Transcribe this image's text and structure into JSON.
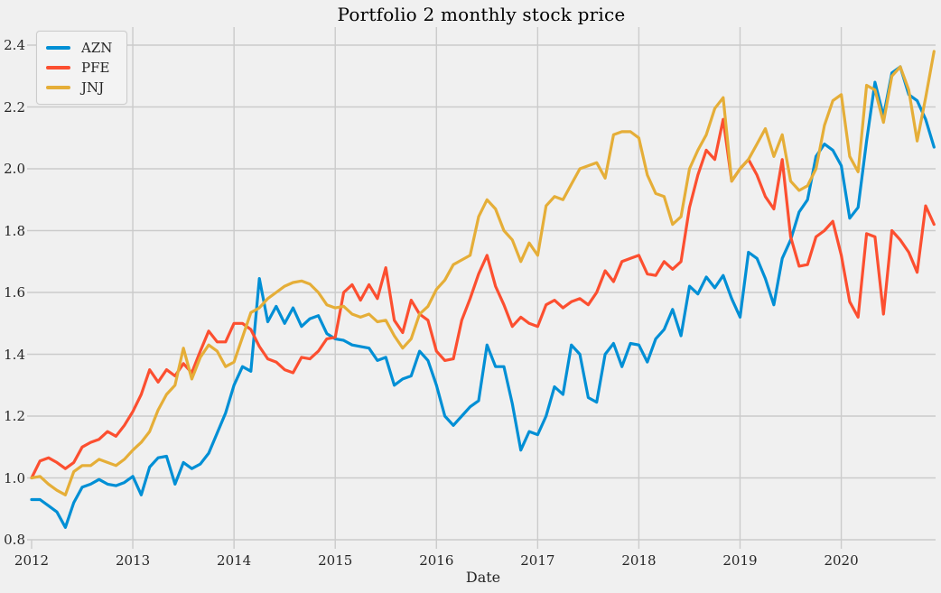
{
  "figure": {
    "title": "Portfolio 2 monthly stock price",
    "xlabel": "Date",
    "background_color": "#f0f0f0",
    "grid_color": "#cbcbcb",
    "text_color": "#262626"
  },
  "legend": {
    "position": "upper left",
    "items": [
      {
        "label": "AZN",
        "color": "#008fd5"
      },
      {
        "label": "PFE",
        "color": "#fc4f30"
      },
      {
        "label": "JNJ",
        "color": "#e5ae38"
      }
    ]
  },
  "chart_data": {
    "type": "line",
    "title": "Portfolio 2 monthly stock price",
    "xlabel": "Date",
    "ylabel": "",
    "x_unit": "month",
    "x_start": "2012-01",
    "x_end": "2020-12",
    "n_points": 108,
    "xticks": [
      "2012",
      "2013",
      "2014",
      "2015",
      "2016",
      "2017",
      "2018",
      "2019",
      "2020"
    ],
    "yticks": [
      0.8,
      1.0,
      1.2,
      1.4,
      1.6,
      1.8,
      2.0,
      2.2,
      2.4
    ],
    "ylim": [
      0.76,
      2.46
    ],
    "grid": true,
    "line_width": 3.2,
    "legend_position": "upper left",
    "series": [
      {
        "name": "AZN",
        "color": "#008fd5",
        "values": [
          0.93,
          0.93,
          0.91,
          0.89,
          0.84,
          0.92,
          0.97,
          0.98,
          0.995,
          0.98,
          0.975,
          0.985,
          1.005,
          0.945,
          1.035,
          1.065,
          1.07,
          0.98,
          1.05,
          1.03,
          1.045,
          1.08,
          1.145,
          1.21,
          1.3,
          1.36,
          1.345,
          1.645,
          1.505,
          1.555,
          1.5,
          1.55,
          1.49,
          1.515,
          1.525,
          1.467,
          1.45,
          1.445,
          1.43,
          1.425,
          1.42,
          1.38,
          1.39,
          1.3,
          1.32,
          1.33,
          1.41,
          1.38,
          1.3,
          1.2,
          1.17,
          1.2,
          1.23,
          1.25,
          1.43,
          1.36,
          1.36,
          1.24,
          1.09,
          1.15,
          1.14,
          1.2,
          1.295,
          1.27,
          1.43,
          1.4,
          1.26,
          1.245,
          1.4,
          1.435,
          1.36,
          1.435,
          1.43,
          1.375,
          1.45,
          1.48,
          1.545,
          1.46,
          1.62,
          1.595,
          1.65,
          1.615,
          1.655,
          1.58,
          1.52,
          1.73,
          1.71,
          1.645,
          1.56,
          1.71,
          1.77,
          1.86,
          1.9,
          2.04,
          2.08,
          2.06,
          2.01,
          1.84,
          1.875,
          2.09,
          2.28,
          2.17,
          2.31,
          2.33,
          2.24,
          2.22,
          2.16,
          2.07
        ]
      },
      {
        "name": "PFE",
        "color": "#fc4f30",
        "values": [
          1.0,
          1.055,
          1.065,
          1.05,
          1.03,
          1.05,
          1.1,
          1.115,
          1.125,
          1.15,
          1.135,
          1.17,
          1.215,
          1.27,
          1.35,
          1.31,
          1.35,
          1.33,
          1.37,
          1.34,
          1.41,
          1.475,
          1.44,
          1.44,
          1.5,
          1.5,
          1.48,
          1.425,
          1.385,
          1.375,
          1.35,
          1.34,
          1.39,
          1.385,
          1.41,
          1.45,
          1.455,
          1.6,
          1.625,
          1.575,
          1.625,
          1.58,
          1.68,
          1.51,
          1.47,
          1.575,
          1.53,
          1.51,
          1.41,
          1.38,
          1.385,
          1.51,
          1.58,
          1.66,
          1.72,
          1.62,
          1.56,
          1.49,
          1.52,
          1.5,
          1.49,
          1.56,
          1.575,
          1.55,
          1.57,
          1.58,
          1.56,
          1.6,
          1.67,
          1.635,
          1.7,
          1.71,
          1.72,
          1.66,
          1.655,
          1.7,
          1.675,
          1.7,
          1.875,
          1.98,
          2.06,
          2.03,
          2.16,
          1.96,
          2.0,
          2.03,
          1.98,
          1.91,
          1.87,
          2.03,
          1.78,
          1.685,
          1.69,
          1.78,
          1.8,
          1.83,
          1.72,
          1.57,
          1.52,
          1.79,
          1.78,
          1.53,
          1.8,
          1.77,
          1.73,
          1.665,
          1.88,
          1.82
        ]
      },
      {
        "name": "JNJ",
        "color": "#e5ae38",
        "values": [
          1.0,
          1.005,
          0.98,
          0.96,
          0.945,
          1.02,
          1.04,
          1.04,
          1.06,
          1.05,
          1.04,
          1.06,
          1.09,
          1.115,
          1.15,
          1.22,
          1.27,
          1.3,
          1.42,
          1.32,
          1.39,
          1.43,
          1.41,
          1.36,
          1.375,
          1.455,
          1.535,
          1.55,
          1.58,
          1.6,
          1.62,
          1.632,
          1.637,
          1.627,
          1.6,
          1.56,
          1.55,
          1.555,
          1.53,
          1.52,
          1.53,
          1.505,
          1.51,
          1.46,
          1.42,
          1.45,
          1.53,
          1.555,
          1.61,
          1.64,
          1.69,
          1.705,
          1.72,
          1.845,
          1.9,
          1.87,
          1.8,
          1.77,
          1.7,
          1.76,
          1.72,
          1.88,
          1.91,
          1.9,
          1.95,
          2.0,
          2.01,
          2.02,
          1.97,
          2.11,
          2.12,
          2.12,
          2.1,
          1.98,
          1.92,
          1.91,
          1.82,
          1.845,
          2.0,
          2.06,
          2.11,
          2.195,
          2.23,
          1.96,
          2.0,
          2.03,
          2.08,
          2.13,
          2.04,
          2.11,
          1.96,
          1.93,
          1.945,
          2.0,
          2.14,
          2.22,
          2.24,
          2.04,
          1.99,
          2.27,
          2.255,
          2.15,
          2.3,
          2.33,
          2.255,
          2.09,
          2.23,
          2.38
        ]
      }
    ]
  }
}
